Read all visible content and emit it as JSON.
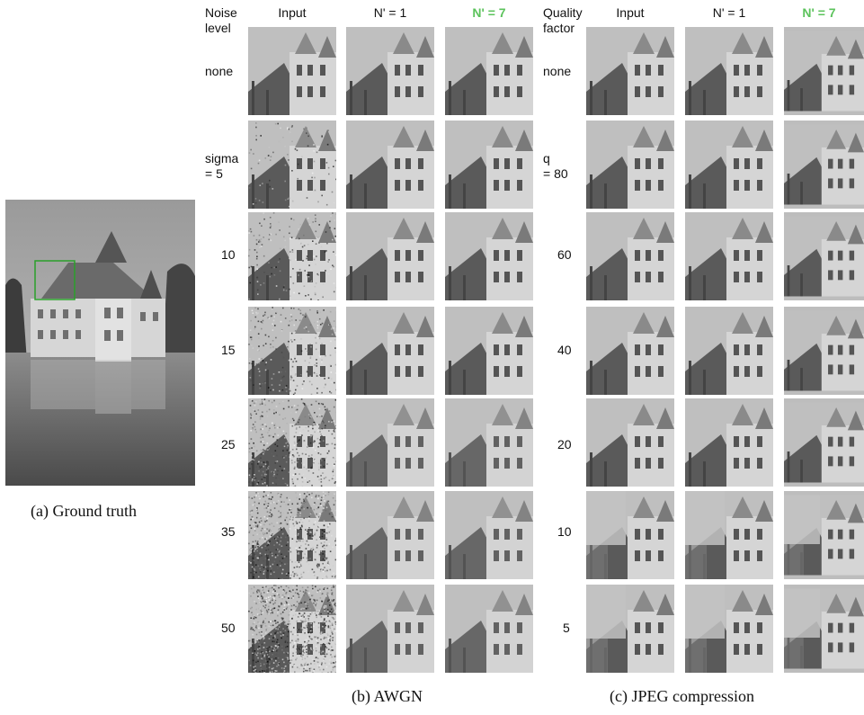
{
  "ground_truth": {
    "caption": "(a) Ground truth"
  },
  "awgn": {
    "caption": "(b) AWGN",
    "header_row_label": "Noise\nlevel",
    "col_headers": [
      "Input",
      "N' = 1",
      "N' = 7"
    ],
    "rows": [
      {
        "label": "none",
        "noise": 0
      },
      {
        "label": "sigma\n= 5",
        "noise": 5
      },
      {
        "label": "10",
        "noise": 10
      },
      {
        "label": "15",
        "noise": 15
      },
      {
        "label": "25",
        "noise": 25
      },
      {
        "label": "35",
        "noise": 35
      },
      {
        "label": "50",
        "noise": 50
      }
    ]
  },
  "jpeg": {
    "caption": "(c) JPEG compression",
    "header_row_label": "Quality\nfactor",
    "col_headers": [
      "Input",
      "N' = 1",
      "N' = 7"
    ],
    "rows": [
      {
        "label": "none",
        "quality": "none"
      },
      {
        "label": "q\n= 80",
        "quality": 80
      },
      {
        "label": "60",
        "quality": 60
      },
      {
        "label": "40",
        "quality": 40
      },
      {
        "label": "20",
        "quality": 20
      },
      {
        "label": "10",
        "quality": 10
      },
      {
        "label": "5",
        "quality": 5
      }
    ]
  },
  "colors": {
    "highlight": "#5cc35c",
    "roi_box": "#2aa02a"
  }
}
